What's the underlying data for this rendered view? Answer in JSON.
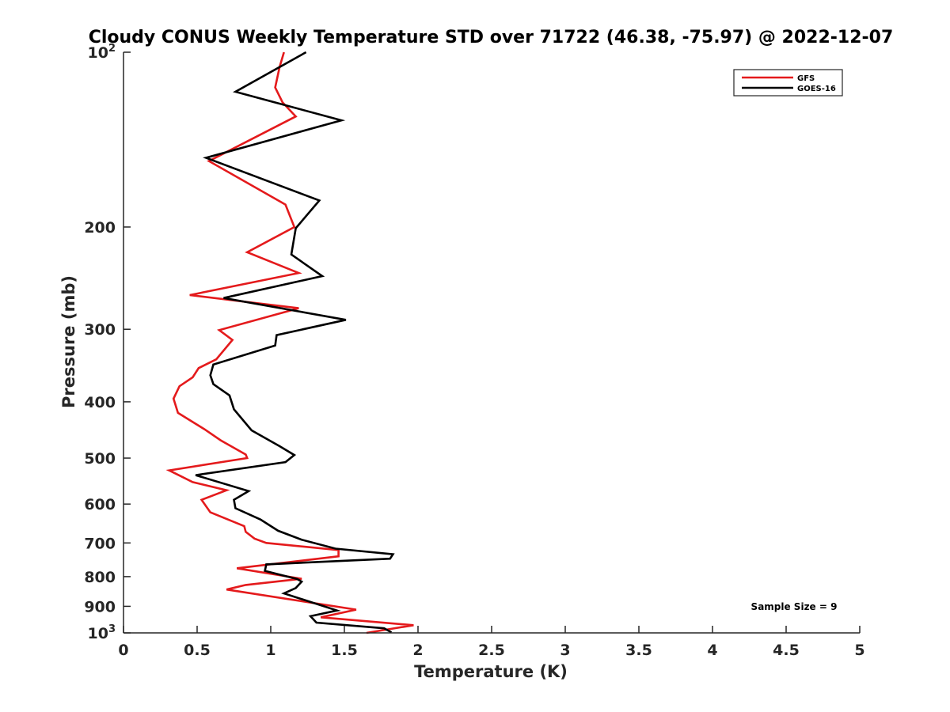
{
  "chart_data": {
    "type": "line",
    "title": "Cloudy CONUS Weekly Temperature STD over 71722 (46.38, -75.97) @ 2022-12-07",
    "xlabel": "Temperature (K)",
    "ylabel": "Pressure (mb)",
    "xlim": [
      0,
      5
    ],
    "ylim": [
      100,
      1000
    ],
    "y_scale": "log",
    "y_reversed": true,
    "grid": false,
    "legend_position": "top-right",
    "x_ticks": [
      {
        "value": 0,
        "label": "0"
      },
      {
        "value": 0.5,
        "label": "0.5"
      },
      {
        "value": 1,
        "label": "1"
      },
      {
        "value": 1.5,
        "label": "1.5"
      },
      {
        "value": 2,
        "label": "2"
      },
      {
        "value": 2.5,
        "label": "2.5"
      },
      {
        "value": 3,
        "label": "3"
      },
      {
        "value": 3.5,
        "label": "3.5"
      },
      {
        "value": 4,
        "label": "4"
      },
      {
        "value": 4.5,
        "label": "4.5"
      },
      {
        "value": 5,
        "label": "5"
      }
    ],
    "y_ticks": [
      {
        "value": 100,
        "base": "10",
        "sup": "2"
      },
      {
        "value": 200,
        "base": "200",
        "sup": ""
      },
      {
        "value": 300,
        "base": "300",
        "sup": ""
      },
      {
        "value": 400,
        "base": "400",
        "sup": ""
      },
      {
        "value": 500,
        "base": "500",
        "sup": ""
      },
      {
        "value": 600,
        "base": "600",
        "sup": ""
      },
      {
        "value": 700,
        "base": "700",
        "sup": ""
      },
      {
        "value": 800,
        "base": "800",
        "sup": ""
      },
      {
        "value": 900,
        "base": "900",
        "sup": ""
      },
      {
        "value": 1000,
        "base": "10",
        "sup": "3"
      }
    ],
    "annotation": "Sample Size = 9",
    "series": [
      {
        "name": "GFS",
        "color": "#e41a1c",
        "points": [
          [
            1.09,
            100
          ],
          [
            1.06,
            106
          ],
          [
            1.03,
            115
          ],
          [
            1.08,
            122
          ],
          [
            1.17,
            129
          ],
          [
            0.58,
            154
          ],
          [
            1.1,
            183
          ],
          [
            1.16,
            200
          ],
          [
            0.84,
            221
          ],
          [
            1.19,
            240
          ],
          [
            0.45,
            262
          ],
          [
            1.19,
            276
          ],
          [
            0.65,
            301
          ],
          [
            0.74,
            313
          ],
          [
            0.63,
            338
          ],
          [
            0.51,
            350
          ],
          [
            0.47,
            363
          ],
          [
            0.38,
            376
          ],
          [
            0.34,
            395
          ],
          [
            0.37,
            418
          ],
          [
            0.55,
            446
          ],
          [
            0.66,
            466
          ],
          [
            0.83,
            493
          ],
          [
            0.84,
            500
          ],
          [
            0.31,
            525
          ],
          [
            0.47,
            550
          ],
          [
            0.7,
            568
          ],
          [
            0.53,
            590
          ],
          [
            0.59,
            620
          ],
          [
            0.82,
            655
          ],
          [
            0.83,
            670
          ],
          [
            0.89,
            688
          ],
          [
            0.97,
            700
          ],
          [
            1.46,
            720
          ],
          [
            1.46,
            738
          ],
          [
            0.77,
            774
          ],
          [
            1.21,
            807
          ],
          [
            0.83,
            827
          ],
          [
            0.7,
            842
          ],
          [
            1.58,
            912
          ],
          [
            1.34,
            940
          ],
          [
            1.97,
            970
          ],
          [
            1.65,
            1000
          ]
        ]
      },
      {
        "name": "GOES-16",
        "color": "#000000",
        "points": [
          [
            1.24,
            100
          ],
          [
            0.76,
            117
          ],
          [
            1.48,
            131
          ],
          [
            0.56,
            152
          ],
          [
            1.33,
            180
          ],
          [
            1.17,
            201
          ],
          [
            1.14,
            223
          ],
          [
            1.35,
            243
          ],
          [
            0.68,
            265
          ],
          [
            1.51,
            289
          ],
          [
            1.04,
            307
          ],
          [
            1.03,
            320
          ],
          [
            0.61,
            345
          ],
          [
            0.59,
            360
          ],
          [
            0.61,
            373
          ],
          [
            0.72,
            390
          ],
          [
            0.75,
            412
          ],
          [
            0.87,
            448
          ],
          [
            1.06,
            477
          ],
          [
            1.16,
            494
          ],
          [
            1.1,
            508
          ],
          [
            0.49,
            535
          ],
          [
            0.85,
            570
          ],
          [
            0.75,
            590
          ],
          [
            0.76,
            610
          ],
          [
            0.93,
            638
          ],
          [
            1.05,
            667
          ],
          [
            1.21,
            691
          ],
          [
            1.44,
            716
          ],
          [
            1.83,
            732
          ],
          [
            1.81,
            745
          ],
          [
            0.97,
            762
          ],
          [
            0.96,
            782
          ],
          [
            1.18,
            808
          ],
          [
            1.21,
            816
          ],
          [
            1.17,
            837
          ],
          [
            1.09,
            855
          ],
          [
            1.45,
            915
          ],
          [
            1.27,
            936
          ],
          [
            1.31,
            960
          ],
          [
            1.77,
            982
          ],
          [
            1.82,
            998
          ]
        ]
      }
    ]
  }
}
